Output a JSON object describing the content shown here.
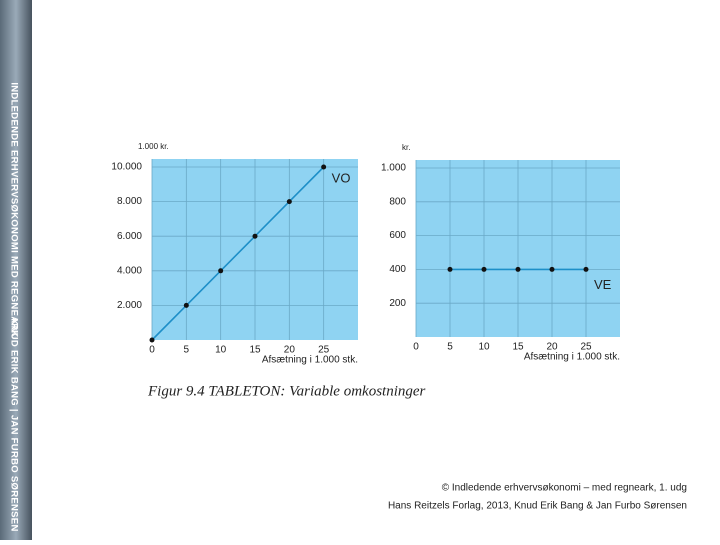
{
  "sidebar": {
    "title": "INDLEDENDE ERHVERVSØKONOMI MED REGNEARK",
    "authors": "KNUD ERIK BANG | JAN FURBO SØRENSEN"
  },
  "chart_data": [
    {
      "type": "line",
      "y_unit": "1.000 kr.",
      "x_label": "Afsætning i 1.000 stk.",
      "annotation": "VO",
      "x": [
        0,
        5,
        10,
        15,
        20,
        25
      ],
      "series": [
        {
          "name": "VO",
          "color": "#1e8fc8",
          "values": [
            0,
            2000,
            4000,
            6000,
            8000,
            10000
          ]
        }
      ],
      "xlim": [
        0,
        30
      ],
      "ylim": [
        0,
        10000
      ],
      "xticks": [
        0,
        5,
        10,
        15,
        20,
        25
      ],
      "yticks": [
        {
          "value": 2000,
          "label": "2.000"
        },
        {
          "value": 4000,
          "label": "4.000"
        },
        {
          "value": 6000,
          "label": "6.000"
        },
        {
          "value": 8000,
          "label": "8.000"
        },
        {
          "value": 10000,
          "label": "10.000"
        }
      ],
      "grid": true,
      "background": "#8fd3f2"
    },
    {
      "type": "line",
      "y_unit": "kr.",
      "x_label": "Afsætning i 1.000 stk.",
      "annotation": "VE",
      "x": [
        5,
        10,
        15,
        20,
        25
      ],
      "series": [
        {
          "name": "VE",
          "color": "#1e8fc8",
          "values": [
            400,
            400,
            400,
            400,
            400
          ]
        }
      ],
      "xlim": [
        0,
        30
      ],
      "ylim": [
        0,
        1000
      ],
      "xticks": [
        0,
        5,
        10,
        15,
        20,
        25
      ],
      "yticks": [
        200,
        400,
        600,
        800,
        {
          "value": 1000,
          "label": "1.000"
        }
      ],
      "grid": true,
      "background": "#8fd3f2"
    }
  ],
  "caption": "Figur 9.4 TABLETON: Variable omkostninger",
  "copyright": [
    "© Indledende erhvervsøkonomi – med regneark, 1. udg",
    "Hans Reitzels Forlag, 2013, Knud Erik Bang & Jan Furbo Sørensen"
  ]
}
